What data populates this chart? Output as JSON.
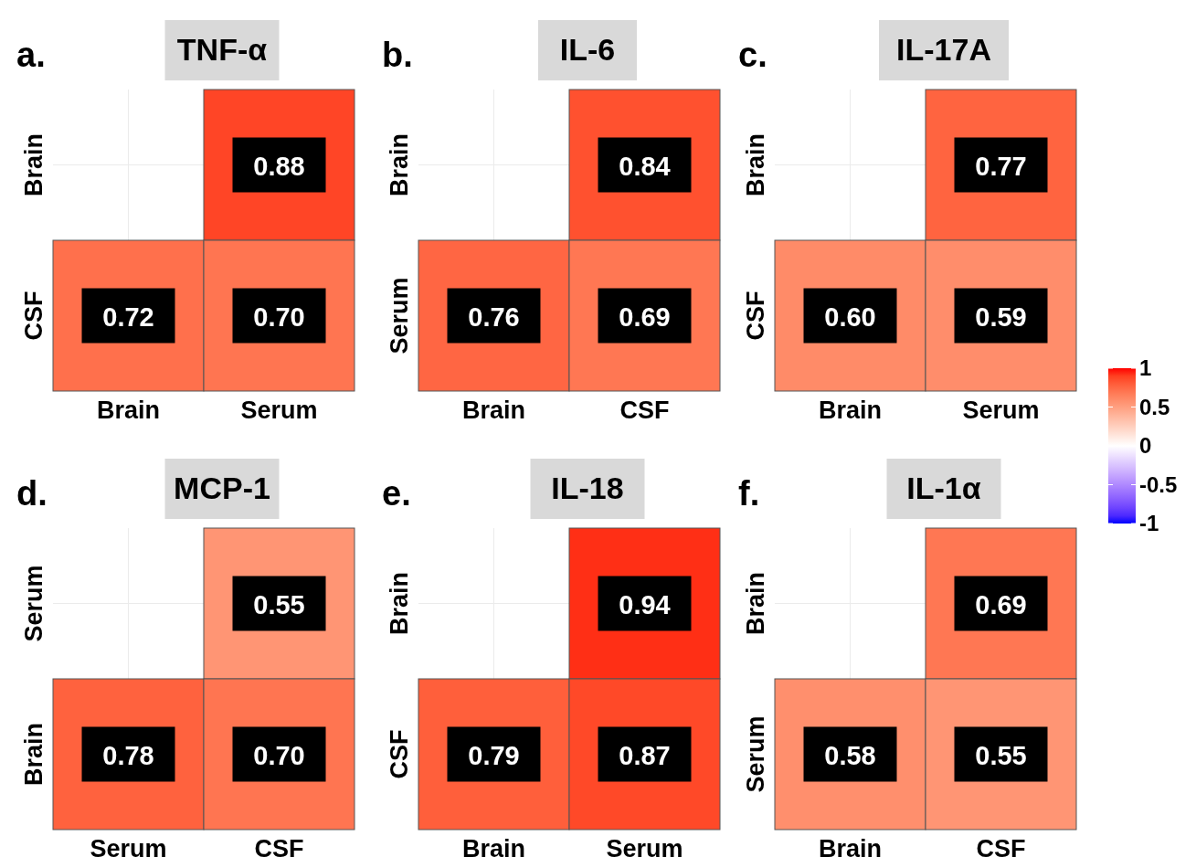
{
  "chart_data": [
    {
      "type": "heatmap",
      "title": "TNF-α",
      "annotations": [
        "a."
      ],
      "categories": [
        "Brain",
        "Serum"
      ],
      "y_categories": [
        "Brain",
        "CSF"
      ],
      "cells": [
        [
          null,
          0.88
        ],
        [
          0.72,
          0.7
        ]
      ],
      "cell_labels": [
        [
          null,
          "0.88"
        ],
        [
          "0.72",
          "0.70"
        ]
      ],
      "grid": true
    },
    {
      "type": "heatmap",
      "title": "IL-6",
      "annotations": [
        "b."
      ],
      "categories": [
        "Brain",
        "CSF"
      ],
      "y_categories": [
        "Brain",
        "Serum"
      ],
      "cells": [
        [
          null,
          0.84
        ],
        [
          0.76,
          0.69
        ]
      ],
      "data_labels": true,
      "grid": true
    },
    {
      "type": "heatmap",
      "title": "IL-17A",
      "annotations": [
        "c."
      ],
      "categories": [
        "Brain",
        "Serum"
      ],
      "y_categories": [
        "Brain",
        "CSF"
      ],
      "cells": [
        [
          null,
          0.77
        ],
        [
          0.6,
          0.59
        ]
      ],
      "cell_labels": [
        [
          null,
          "0.77"
        ],
        [
          "0.60",
          "0.59"
        ]
      ],
      "clim": [
        -1,
        1
      ],
      "cticks": [
        1,
        0.5,
        0,
        -0.5,
        -1
      ],
      "grid": true
    },
    {
      "type": "heatmap",
      "title": "MCP-1",
      "annotations": [
        "d."
      ],
      "categories": [
        "Serum",
        "CSF"
      ],
      "y_categories": [
        "Serum",
        "Brain"
      ],
      "cells": [
        [
          null,
          0.55
        ],
        [
          0.78,
          0.7
        ]
      ],
      "cell_labels": [
        [
          null,
          "0.55"
        ],
        [
          "0.78",
          "0.70"
        ]
      ],
      "grid": true
    },
    {
      "type": "heatmap",
      "title": "IL-18",
      "annotations": [
        "e."
      ],
      "categories": [
        "Brain",
        "Serum"
      ],
      "y_categories": [
        "Brain",
        "CSF"
      ],
      "cells": [
        [
          null,
          0.94
        ],
        [
          0.79,
          0.87
        ]
      ],
      "data_labels": true,
      "grid": true
    },
    {
      "type": "heatmap",
      "title": "IL-1α",
      "annotations": [
        "f."
      ],
      "categories": [
        "Brain",
        "CSF"
      ],
      "y_categories": [
        "Brain",
        "Serum"
      ],
      "cells": [
        [
          null,
          0.69
        ],
        [
          0.58,
          0.55
        ]
      ],
      "data_labels": true,
      "grid": true
    }
  ]
}
